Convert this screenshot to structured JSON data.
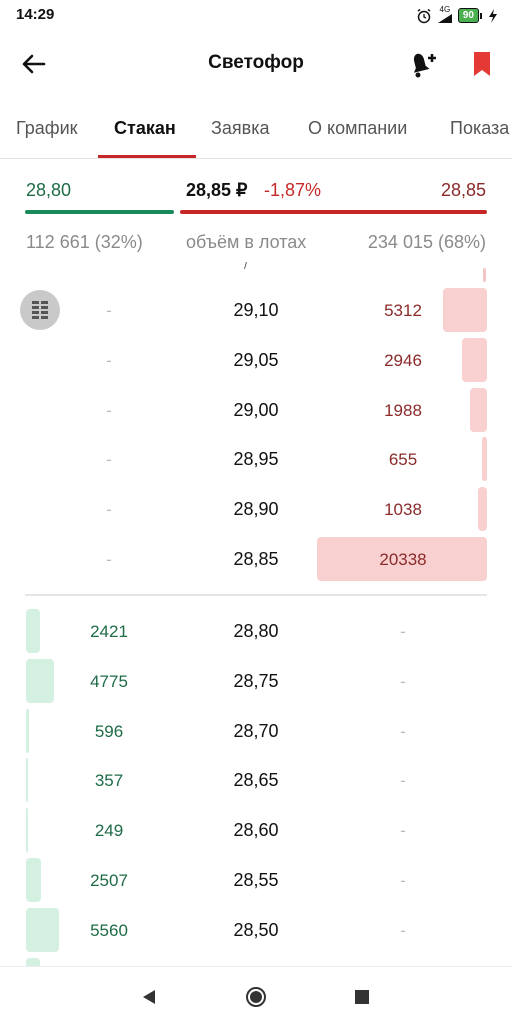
{
  "status_bar": {
    "time": "14:29",
    "network": "4G",
    "battery": "90",
    "icons": [
      "alarm-icon",
      "signal-icon",
      "battery-icon",
      "charging-icon"
    ]
  },
  "app_bar": {
    "title": "Светофор",
    "icons": [
      "back-arrow-icon",
      "bell-plus-icon",
      "bookmark-icon"
    ],
    "bookmark_color": "#e53935"
  },
  "tabs": [
    {
      "label": "График"
    },
    {
      "label": "Стакан"
    },
    {
      "label": "Заявка"
    },
    {
      "label": "О компании"
    },
    {
      "label": "Показа"
    }
  ],
  "active_tab": "Стакан",
  "summary": {
    "best_bid": "28,80",
    "last_price": "28,85 ₽",
    "change": "-1,87%",
    "best_ask": "28,85",
    "bid_volume": "112 661 (32%)",
    "volume_label": "объём в лотах",
    "ask_volume": "234 015 (68%)",
    "bid_share": 0.32,
    "ask_share": 0.68
  },
  "colors": {
    "bid": "#1e6b45",
    "ask": "#8b2a2a",
    "ask_accent": "#c62828",
    "bid_accent": "#1b8a5a",
    "ask_bar": "#f8d0d0",
    "bid_bar": "#d3f0e0"
  },
  "order_book": {
    "partial_row_mark": "/",
    "asks": [
      {
        "price": "29,10",
        "qty": "5312",
        "bid": "-"
      },
      {
        "price": "29,05",
        "qty": "2946",
        "bid": "-"
      },
      {
        "price": "29,00",
        "qty": "1988",
        "bid": "-"
      },
      {
        "price": "28,95",
        "qty": "655",
        "bid": "-"
      },
      {
        "price": "28,90",
        "qty": "1038",
        "bid": "-"
      },
      {
        "price": "28,85",
        "qty": "20338",
        "bid": "-"
      }
    ],
    "bids": [
      {
        "price": "28,80",
        "qty": "2421",
        "ask": "-"
      },
      {
        "price": "28,75",
        "qty": "4775",
        "ask": "-"
      },
      {
        "price": "28,70",
        "qty": "596",
        "ask": "-"
      },
      {
        "price": "28,65",
        "qty": "357",
        "ask": "-"
      },
      {
        "price": "28,60",
        "qty": "249",
        "ask": "-"
      },
      {
        "price": "28,55",
        "qty": "2507",
        "ask": "-"
      },
      {
        "price": "28,50",
        "qty": "5560",
        "ask": "-"
      }
    ]
  },
  "fab_icon": "order-book-icon",
  "nav_bar": {
    "icons": [
      "back-triangle-icon",
      "home-circle-icon",
      "recents-square-icon"
    ]
  }
}
